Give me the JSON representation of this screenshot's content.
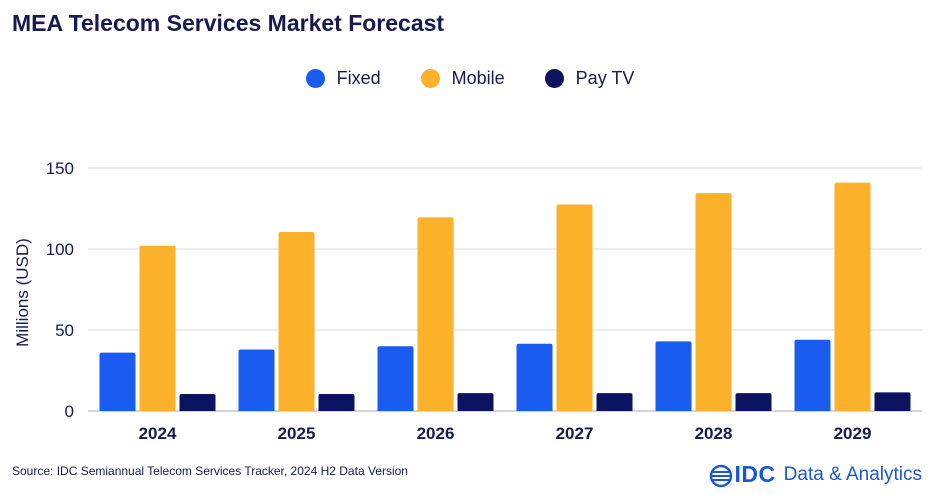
{
  "title": "MEA Telecom Services Market Forecast",
  "legend": [
    {
      "label": "Fixed",
      "color": "#1a5cf0"
    },
    {
      "label": "Mobile",
      "color": "#fbb12a"
    },
    {
      "label": "Pay TV",
      "color": "#0b1260"
    }
  ],
  "source": "Source: IDC Semiannual Telecom Services Tracker, 2024 H2 Data Version",
  "brand": {
    "logo": "IDC",
    "tagline": "Data & Analytics",
    "color": "#1a57d6"
  },
  "chart_data": {
    "type": "bar",
    "title": "MEA Telecom Services Market Forecast",
    "xlabel": "",
    "ylabel": "Millions (USD)",
    "ylim": [
      0,
      150
    ],
    "yticks": [
      0,
      50,
      100,
      150
    ],
    "grid": true,
    "legend_position": "top-center",
    "categories": [
      "2024",
      "2025",
      "2026",
      "2027",
      "2028",
      "2029"
    ],
    "series": [
      {
        "name": "Fixed",
        "color": "#1a5cf0",
        "values": [
          36,
          38,
          40,
          41.5,
          43,
          44
        ]
      },
      {
        "name": "Mobile",
        "color": "#fbb12a",
        "values": [
          102,
          110.5,
          119.5,
          127.5,
          134.5,
          141
        ]
      },
      {
        "name": "Pay TV",
        "color": "#0b1260",
        "values": [
          10.5,
          10.5,
          11,
          11,
          11,
          11.5
        ]
      }
    ]
  }
}
